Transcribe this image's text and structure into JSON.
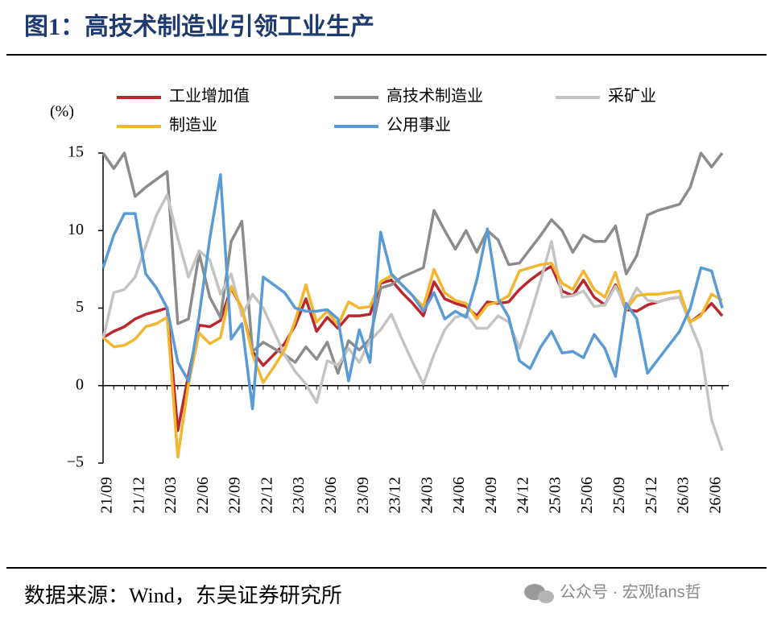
{
  "chart_data": {
    "type": "line",
    "title": "图1：高技术制造业引领工业生产",
    "y_label": "(%)",
    "source": "数据来源：Wind，东吴证券研究所",
    "watermark": "公众号 · 宏观fans哲",
    "categories": [
      "21/09",
      null,
      null,
      "21/12",
      null,
      null,
      "22/03",
      null,
      null,
      "22/06",
      null,
      null,
      "22/09",
      null,
      null,
      "22/12",
      null,
      null,
      "23/03",
      null,
      null,
      "23/06",
      null,
      null,
      "23/09",
      null,
      null,
      "23/12",
      null,
      null,
      "24/03",
      null,
      null,
      "24/06",
      null,
      null,
      "24/09",
      null,
      null,
      "24/12",
      null,
      null,
      "25/03",
      null,
      null,
      "25/06",
      null,
      null,
      "25/09",
      null,
      null,
      "25/12",
      null,
      null,
      "26/03",
      null,
      null,
      "26/06",
      null
    ],
    "ylim": [
      -5,
      15
    ],
    "yticks": [
      {
        "value": -5,
        "label": "−5"
      },
      0,
      5,
      10,
      15
    ],
    "series": [
      {
        "name": "工业增加值",
        "color": "#b8282e",
        "values": [
          3.1,
          3.5,
          3.8,
          4.3,
          4.6,
          4.8,
          5.0,
          -2.9,
          0.7,
          3.9,
          3.8,
          4.2,
          6.3,
          5.0,
          2.2,
          1.3,
          2.0,
          2.7,
          3.9,
          5.6,
          3.5,
          4.4,
          3.7,
          4.5,
          4.5,
          4.6,
          6.6,
          6.8,
          6.0,
          5.3,
          4.5,
          6.7,
          5.6,
          5.3,
          5.1,
          4.5,
          5.4,
          5.3,
          5.4,
          6.2,
          6.8,
          7.3,
          7.7,
          6.1,
          5.8,
          6.8,
          5.7,
          5.2,
          6.5,
          4.9,
          4.8,
          5.2,
          5.4,
          5.6,
          5.7,
          4.1,
          4.6,
          5.3,
          4.5
        ]
      },
      {
        "name": "高技术制造业",
        "color": "#8c8c8c",
        "values": [
          15,
          14.0,
          15,
          12.2,
          12.8,
          13.3,
          13.8,
          4.0,
          4.3,
          8.5,
          5.7,
          4.4,
          9.3,
          10.6,
          2.2,
          2.8,
          2.4,
          2.0,
          1.5,
          2.5,
          1.7,
          2.8,
          0.8,
          2.9,
          2.3,
          3.0,
          6.3,
          6.5,
          7.0,
          7.3,
          7.6,
          11.3,
          10.0,
          8.8,
          10.0,
          8.6,
          10.0,
          9.4,
          7.8,
          7.9,
          8.8,
          9.7,
          10.7,
          10.0,
          8.6,
          9.7,
          9.3,
          9.3,
          10.3,
          7.2,
          8.4,
          11.0,
          11.3,
          11.5,
          11.7,
          12.8,
          15,
          14.1,
          15
        ]
      },
      {
        "name": "采矿业",
        "color": "#c4c4c4",
        "values": [
          3.0,
          6.0,
          6.2,
          7.0,
          9.0,
          11.0,
          12.3,
          9.5,
          7.0,
          8.7,
          8.1,
          5.9,
          7.2,
          4.5,
          5.9,
          5.0,
          3.5,
          2.0,
          0.9,
          0.1,
          -1.1,
          1.6,
          1.3,
          2.4,
          1.5,
          2.9,
          3.6,
          4.6,
          3.0,
          1.5,
          0.1,
          2.0,
          3.6,
          4.4,
          4.6,
          3.7,
          3.7,
          4.5,
          4.1,
          2.4,
          4.5,
          6.8,
          9.3,
          5.7,
          5.8,
          6.1,
          5.1,
          5.2,
          6.4,
          5.0,
          6.3,
          5.5,
          5.4,
          5.6,
          5.7,
          4.0,
          2.3,
          -2.2,
          -4.2
        ]
      },
      {
        "name": "制造业",
        "color": "#f2b630",
        "values": [
          3.1,
          2.5,
          2.6,
          3.0,
          3.8,
          4.0,
          4.4,
          -4.6,
          0.1,
          3.4,
          2.7,
          3.1,
          6.4,
          5.0,
          2.0,
          0.2,
          1.2,
          2.3,
          4.2,
          6.5,
          4.1,
          4.8,
          3.9,
          5.4,
          5.0,
          5.1,
          6.7,
          7.1,
          6.5,
          5.8,
          5.1,
          7.5,
          6.0,
          5.5,
          5.3,
          4.3,
          5.2,
          5.4,
          5.8,
          7.4,
          7.6,
          7.8,
          7.9,
          6.6,
          6.2,
          7.4,
          6.2,
          5.7,
          7.3,
          4.9,
          5.8,
          5.9,
          5.9,
          6.0,
          6.1,
          4.1,
          4.5,
          5.9,
          5.5
        ]
      },
      {
        "name": "公用事业",
        "color": "#5b9bd5",
        "values": [
          7.6,
          9.7,
          11.1,
          11.1,
          7.2,
          6.3,
          5.0,
          1.5,
          0.3,
          4.5,
          9.5,
          13.6,
          3.0,
          4.0,
          -1.5,
          7.0,
          6.5,
          6.0,
          5.0,
          4.8,
          4.8,
          4.9,
          4.3,
          0.3,
          3.6,
          1.5,
          9.9,
          7.2,
          6.5,
          5.8,
          4.8,
          6.0,
          4.3,
          4.8,
          4.4,
          6.8,
          10.1,
          5.6,
          4.4,
          1.6,
          1.1,
          2.5,
          3.5,
          2.1,
          2.2,
          1.8,
          3.3,
          2.4,
          0.6,
          5.3,
          4.3,
          0.8,
          1.7,
          2.6,
          3.5,
          5.0,
          7.6,
          7.4,
          5.0
        ]
      }
    ]
  }
}
